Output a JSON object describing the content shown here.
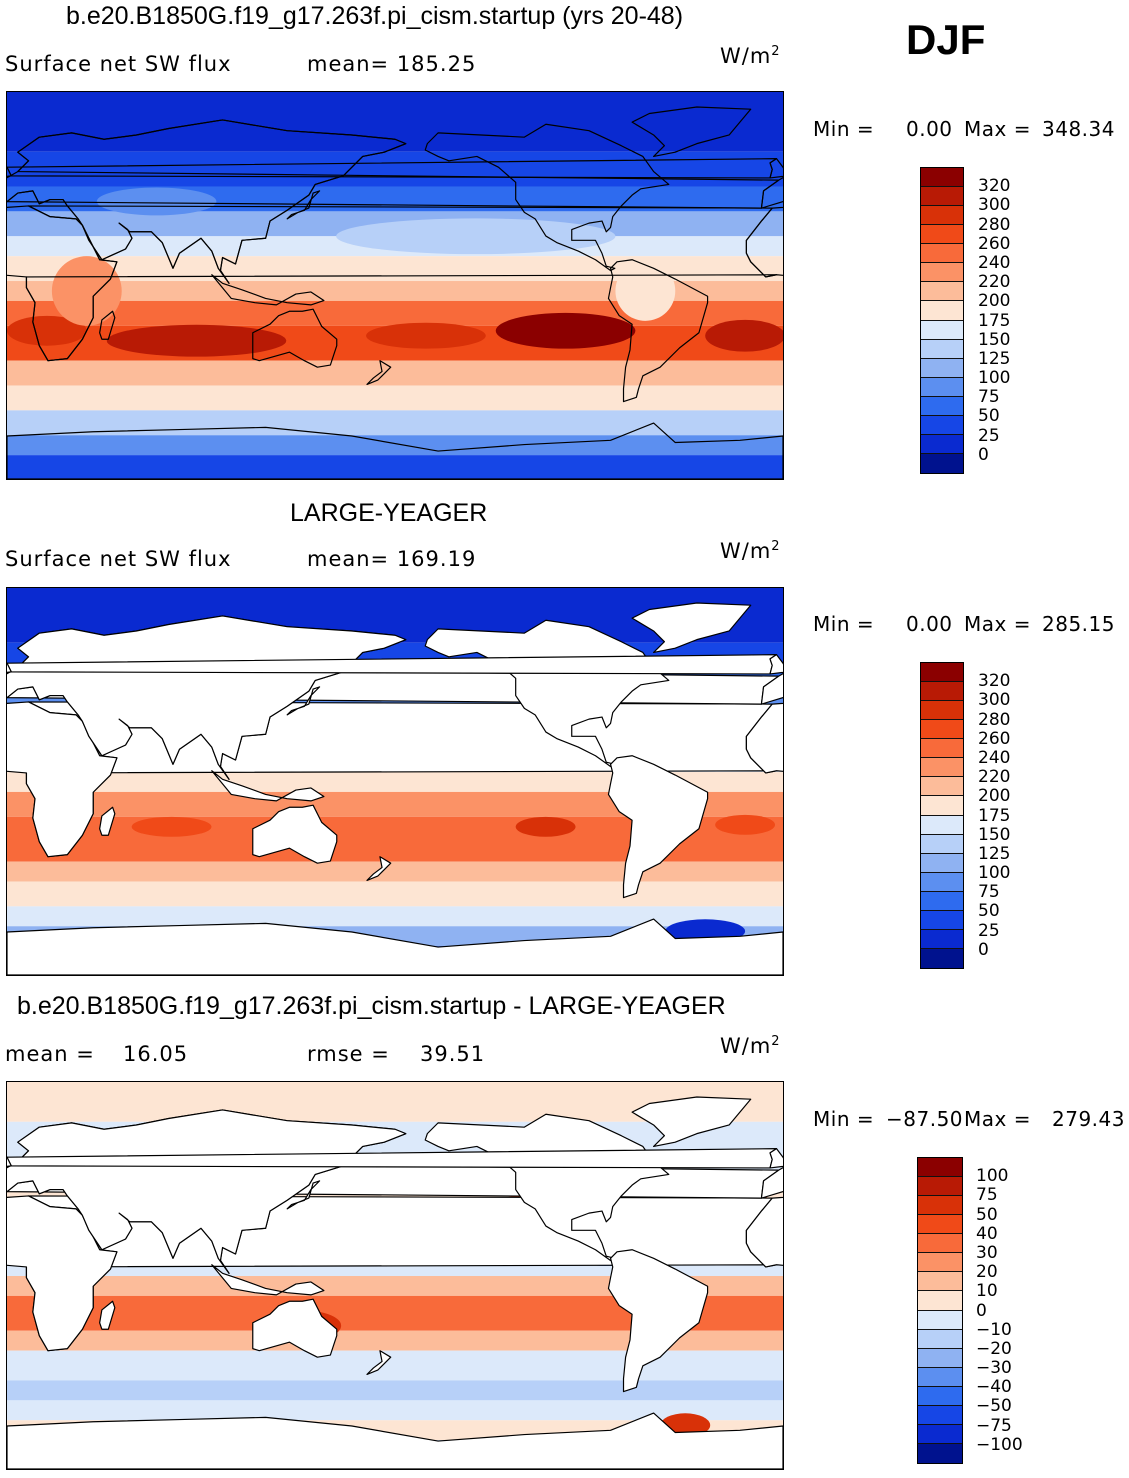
{
  "season": "DJF",
  "units_base": "W/m",
  "units_exp": "2",
  "panels": [
    {
      "title": "b.e20.B1850G.f19_g17.263f.pi_cism.startup (yrs 20-48)",
      "left_label": "Surface net SW flux",
      "center_label": "mean= 185.25",
      "min_label": "Min =",
      "min_value": "0.00",
      "max_label": "Max =",
      "max_value": "348.34",
      "colorbar_labels": [
        "320",
        "300",
        "280",
        "260",
        "240",
        "220",
        "200",
        "175",
        "150",
        "125",
        "100",
        "75",
        "50",
        "25",
        "0"
      ],
      "land_masked": false
    },
    {
      "title": "LARGE-YEAGER",
      "left_label": "Surface net SW flux",
      "center_label": "mean= 169.19",
      "min_label": "Min =",
      "min_value": "0.00",
      "max_label": "Max =",
      "max_value": "285.15",
      "colorbar_labels": [
        "320",
        "300",
        "280",
        "260",
        "240",
        "220",
        "200",
        "175",
        "150",
        "125",
        "100",
        "75",
        "50",
        "25",
        "0"
      ],
      "land_masked": true
    },
    {
      "title": "b.e20.B1850G.f19_g17.263f.pi_cism.startup - LARGE-YEAGER",
      "left_label": "mean =",
      "left_value": "16.05",
      "center_label": "rmse =",
      "center_value": "39.51",
      "min_label": "Min =",
      "min_value": "−87.50",
      "max_label": "Max =",
      "max_value": "279.43",
      "colorbar_labels": [
        "100",
        "75",
        "50",
        "40",
        "30",
        "20",
        "10",
        "0",
        "−10",
        "−20",
        "−30",
        "−40",
        "−50",
        "−75",
        "−100"
      ],
      "land_masked": true
    }
  ],
  "colors": {
    "abs_scale": [
      "#8b0000",
      "#b81a05",
      "#d83108",
      "#f04a18",
      "#f86a3a",
      "#fb9266",
      "#fcbc9a",
      "#fde5d3",
      "#dce9fa",
      "#b7d0f8",
      "#8fb2f2",
      "#5c8ff0",
      "#2e6bef",
      "#1646e6",
      "#0a2ad0",
      "#00128e"
    ],
    "diff_scale": [
      "#8b0000",
      "#b81a05",
      "#d83108",
      "#f04a18",
      "#f86a3a",
      "#fb9266",
      "#fcbc9a",
      "#fde5d3",
      "#dce9fa",
      "#b7d0f8",
      "#8fb2f2",
      "#5c8ff0",
      "#2e6bef",
      "#1646e6",
      "#0a2ad0",
      "#00128e"
    ]
  }
}
